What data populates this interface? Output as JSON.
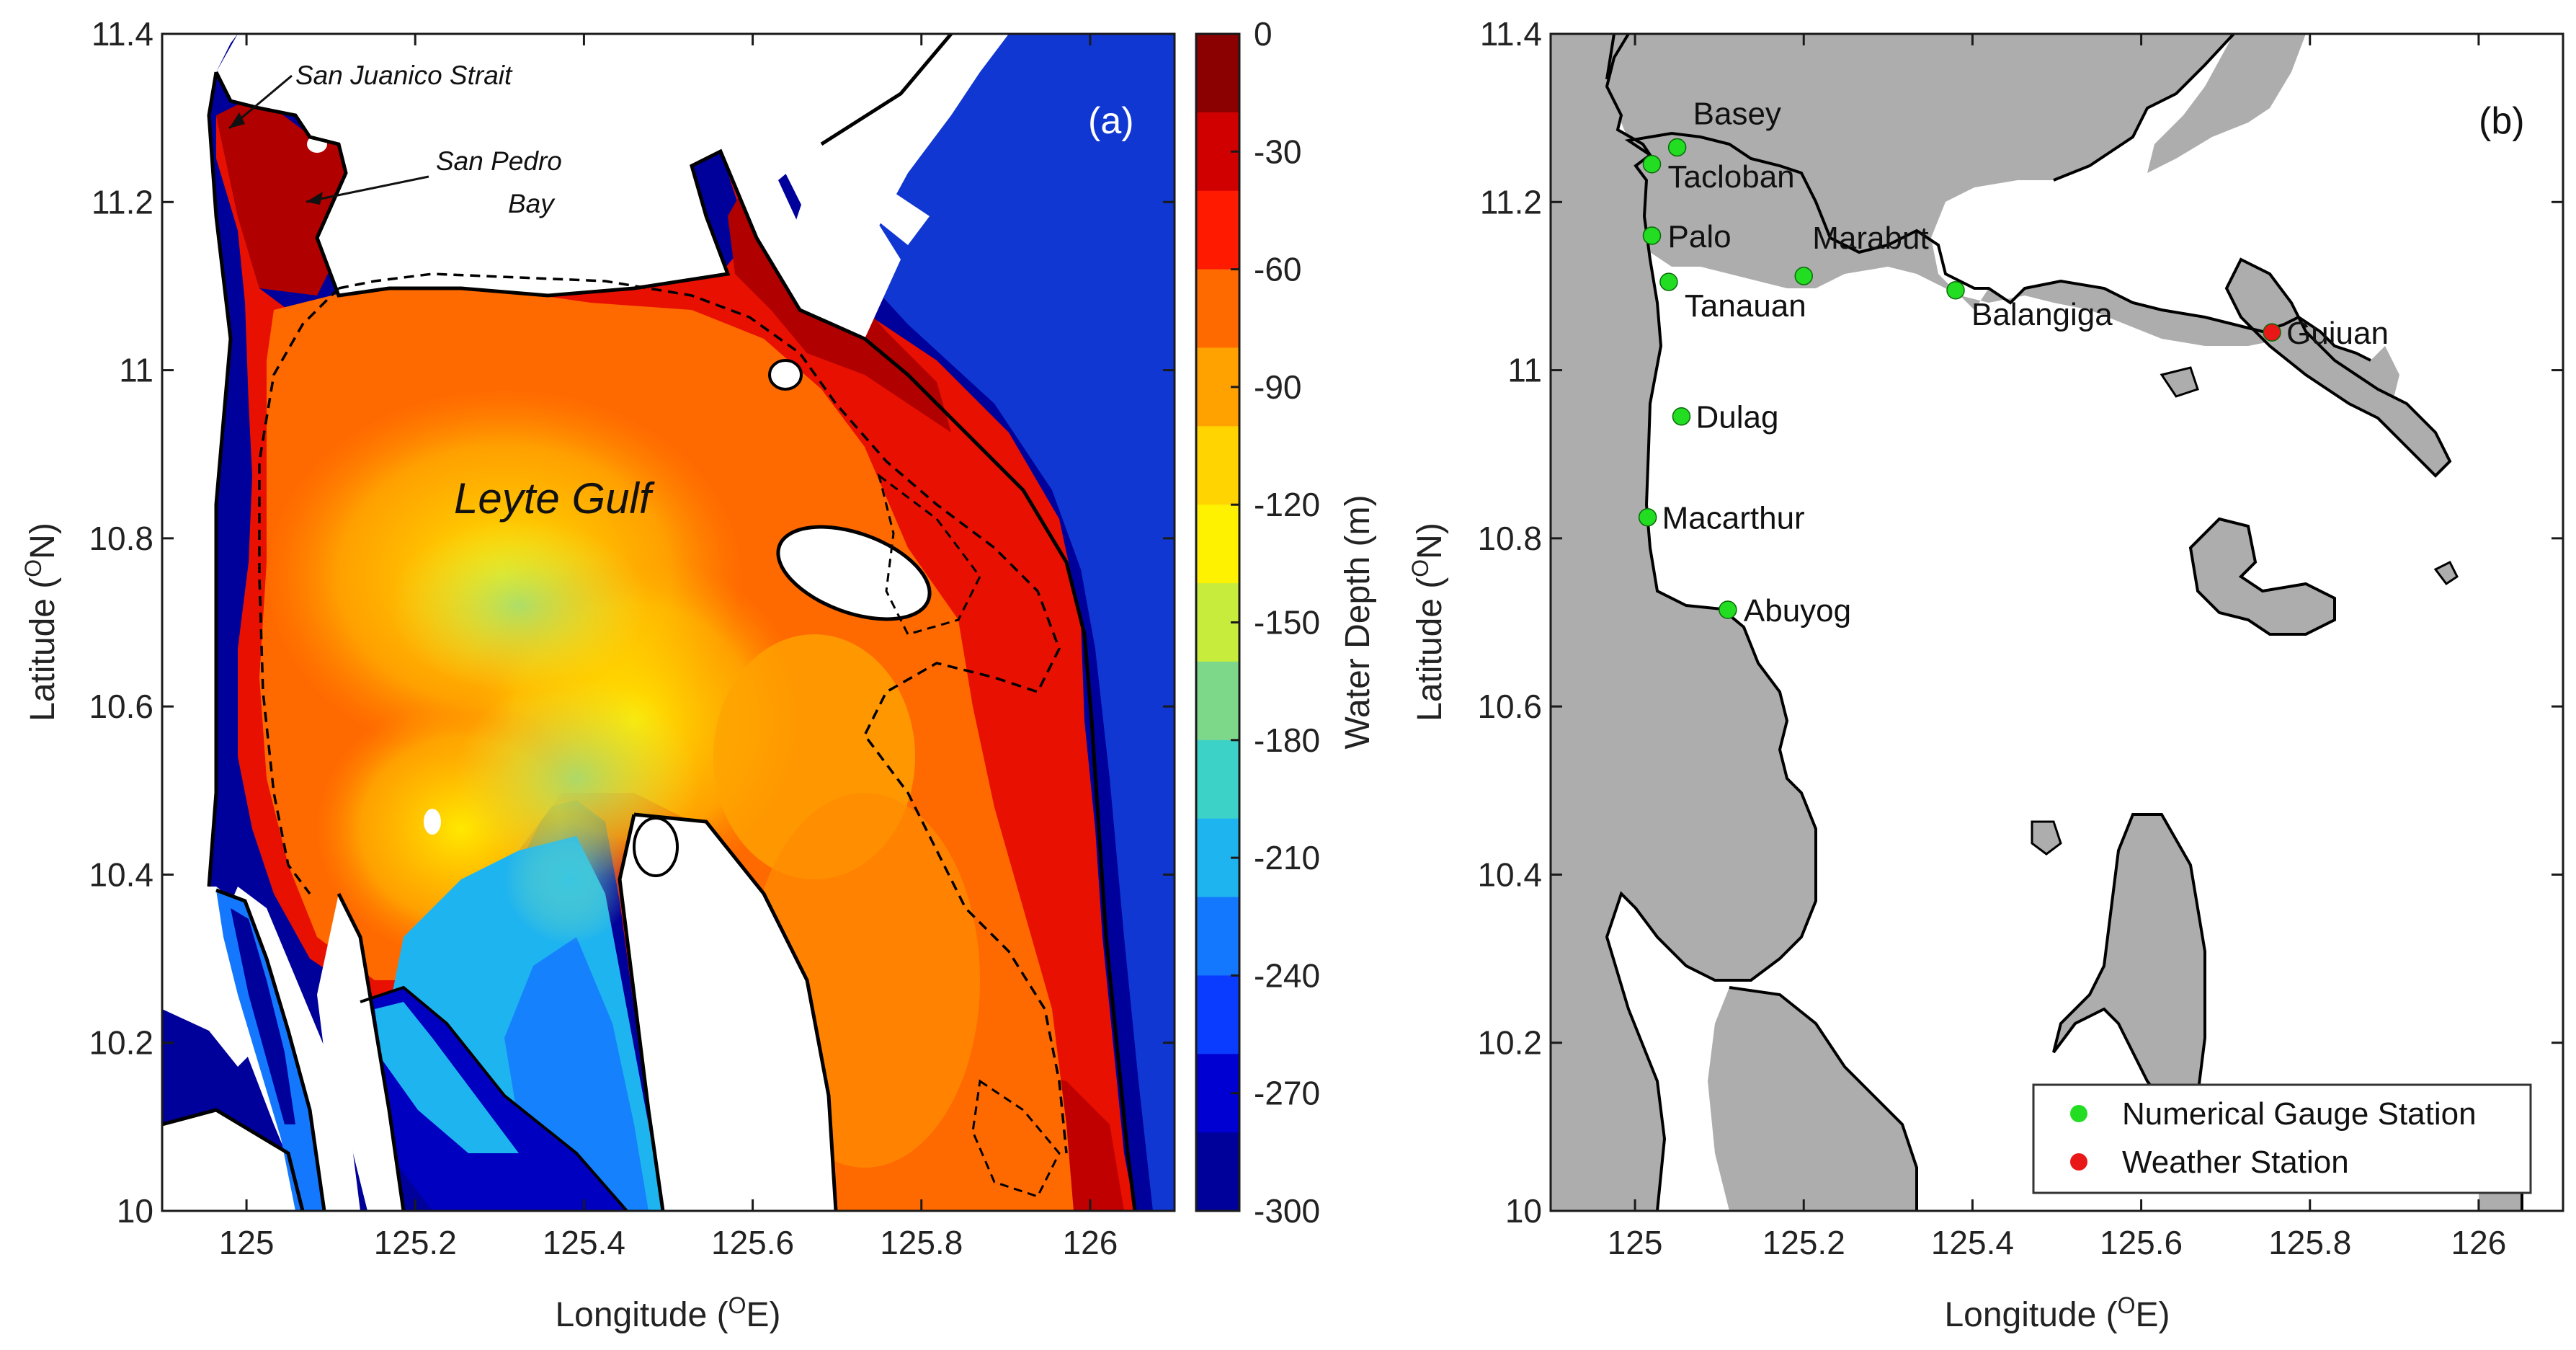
{
  "panel_a": {
    "tag": "(a)",
    "gulf_label": "Leyte Gulf",
    "strait_label": "San Juanico Strait",
    "bay_label_1": "San Pedro",
    "bay_label_2": "Bay",
    "colorbar_label": "Water Depth (m)"
  },
  "panel_b": {
    "tag": "(b)",
    "legend": {
      "gauge": "Numerical Gauge Station",
      "weather": "Weather Station"
    }
  },
  "axes": {
    "xlabel_a": "Longitude (",
    "xlabel_a_sup": "O",
    "xlabel_a_end": "E)",
    "ylabel_a": "Latitude (",
    "ylabel_a_sup": "O",
    "ylabel_a_end": "N)",
    "xlabel_b": "Longitude (",
    "xlabel_b_sup": "O",
    "xlabel_b_end": "E)",
    "ylabel_b": "Latitude (",
    "ylabel_b_sup": "O",
    "ylabel_b_end": "N)",
    "x_ticks": [
      "125",
      "125.2",
      "125.4",
      "125.6",
      "125.8",
      "126"
    ],
    "y_ticks": [
      "11.4",
      "11.2",
      "11",
      "10.8",
      "10.6",
      "10.4",
      "10.2",
      "10"
    ],
    "x_range": [
      124.9,
      126.1
    ],
    "y_range": [
      10.0,
      11.4
    ]
  },
  "colorbar": {
    "ticks": [
      "0",
      "-30",
      "-60",
      "-90",
      "-120",
      "-150",
      "-180",
      "-210",
      "-240",
      "-270",
      "-300"
    ],
    "range": [
      -300,
      0
    ],
    "colors": [
      "#8b0000",
      "#d00000",
      "#ff1a00",
      "#ff6a00",
      "#ffa200",
      "#ffd400",
      "#fff200",
      "#c8ec3c",
      "#7ed88a",
      "#3cd2c8",
      "#1eb4f0",
      "#1478ff",
      "#0a3cff",
      "#0000d2",
      "#00009a"
    ]
  },
  "stations": [
    {
      "name": "Basey",
      "lon": 125.05,
      "lat": 11.265,
      "type": "gauge"
    },
    {
      "name": "Tacloban",
      "lon": 125.02,
      "lat": 11.245,
      "type": "gauge"
    },
    {
      "name": "Palo",
      "lon": 125.02,
      "lat": 11.16,
      "type": "gauge"
    },
    {
      "name": "Tanauan",
      "lon": 125.04,
      "lat": 11.105,
      "type": "gauge"
    },
    {
      "name": "Marabut",
      "lon": 125.2,
      "lat": 11.112,
      "type": "gauge"
    },
    {
      "name": "Balangiga",
      "lon": 125.38,
      "lat": 11.095,
      "type": "gauge"
    },
    {
      "name": "Guiuan",
      "lon": 125.755,
      "lat": 11.045,
      "type": "weather"
    },
    {
      "name": "Dulag",
      "lon": 125.055,
      "lat": 10.945,
      "type": "gauge"
    },
    {
      "name": "Macarthur",
      "lon": 125.015,
      "lat": 10.825,
      "type": "gauge"
    },
    {
      "name": "Abuyog",
      "lon": 125.11,
      "lat": 10.715,
      "type": "gauge"
    }
  ],
  "colors": {
    "gauge": "#22dd22",
    "weather": "#e81818",
    "land": "#adadad",
    "deep": "#00009a"
  }
}
